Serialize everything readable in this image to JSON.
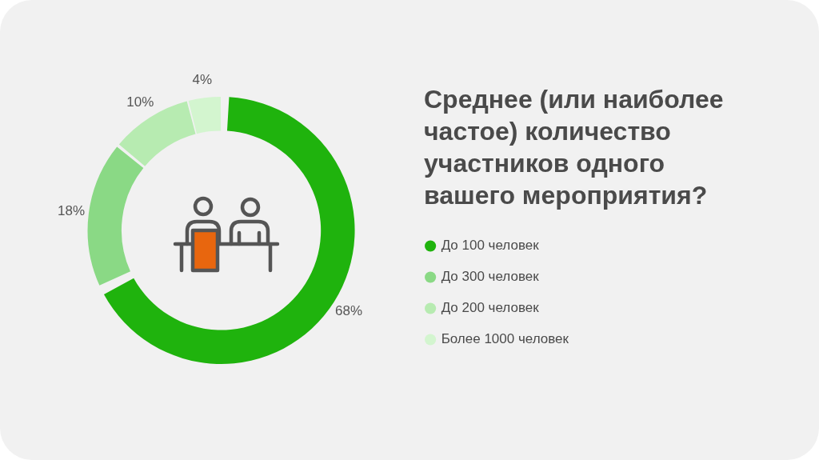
{
  "chart_data": {
    "type": "donut",
    "title": "Среднее (или наиболее частое) количество участников одного вашего мероприятия?",
    "categories": [
      "До 100 человек",
      "До 300 человек",
      "До 200 человек",
      "Более 1000 человек"
    ],
    "values": [
      68,
      18,
      10,
      4
    ],
    "colors": [
      "#1fb30d",
      "#8ad985",
      "#b7ebb1",
      "#d3f5cf"
    ],
    "value_labels": [
      "68%",
      "18%",
      "10%",
      "4%"
    ],
    "legend": "right"
  }
}
